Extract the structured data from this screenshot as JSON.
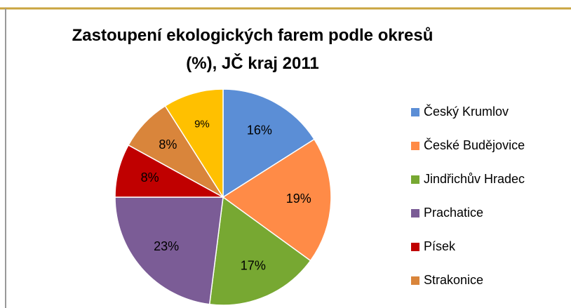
{
  "chart_data": {
    "type": "pie",
    "title": "Zastoupení ekologických farem podle okresů (%), JČ kraj 2011",
    "categories": [
      "Český Krumlov",
      "České Budějovice",
      "Jindřichův Hradec",
      "Prachatice",
      "Písek",
      "Strakonice",
      null
    ],
    "values": [
      16,
      19,
      17,
      23,
      8,
      8,
      9
    ],
    "value_labels": [
      "16%",
      "19%",
      "17%",
      "23%",
      "8%",
      "8%",
      "9%"
    ],
    "colors": [
      "#5b8ed6",
      "#ff8b47",
      "#77a832",
      "#7b5c96",
      "#c00000",
      "#d9853b",
      "#ffc000"
    ],
    "legend": "right"
  }
}
